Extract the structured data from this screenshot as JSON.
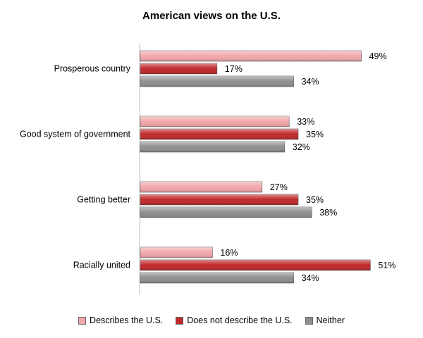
{
  "chart_data": {
    "type": "bar",
    "orientation": "horizontal",
    "title": "American views on the U.S.",
    "categories": [
      "Prosperous country",
      "Good system of government",
      "Getting better",
      "Racially united"
    ],
    "series": [
      {
        "name": "Describes the U.S.",
        "values": [
          49,
          33,
          27,
          16
        ],
        "color": "#f2a7ab"
      },
      {
        "name": "Does not describe the U.S.",
        "values": [
          17,
          35,
          35,
          51
        ],
        "color": "#c0282a"
      },
      {
        "name": "Neither",
        "values": [
          34,
          32,
          38,
          34
        ],
        "color": "#8f8f8f"
      }
    ],
    "value_suffix": "%",
    "xlim": [
      0,
      60
    ],
    "grid": false,
    "legend_position": "bottom"
  }
}
